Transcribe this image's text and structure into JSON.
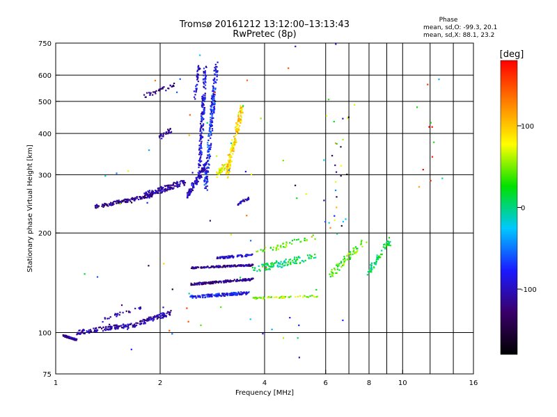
{
  "chart_data": {
    "type": "scatter",
    "title": "Tromsø 20161212 13:12:00–13:13:43",
    "subtitle": "RwPretec (8p)",
    "xlabel": "Frequency [MHz]",
    "ylabel": "Stationary phase Virtual Height [km]",
    "x_scale": "log",
    "y_scale": "log",
    "xlim": [
      1,
      16
    ],
    "ylim": [
      75,
      750
    ],
    "x_ticks": [
      1,
      2,
      4,
      6,
      8,
      10,
      16
    ],
    "x_tick_labels": [
      "1",
      "2",
      "4",
      "6",
      "8",
      "10",
      "16"
    ],
    "x_grid": [
      2,
      4,
      6,
      7,
      8,
      9,
      10,
      12,
      14
    ],
    "y_ticks": [
      75,
      100,
      200,
      300,
      400,
      500,
      600,
      750
    ],
    "y_tick_labels": [
      "75",
      "100",
      "200",
      "300",
      "400",
      "500",
      "600",
      "750"
    ],
    "y_grid": [
      100,
      200,
      300,
      400,
      500,
      600
    ],
    "grid": true,
    "stats": {
      "header": "Phase",
      "o_mode": "mean, sd,O: -99.3, 20.1",
      "x_mode": "mean, sd,X:  88.1, 23.2"
    },
    "colorbar": {
      "label": "[deg]",
      "ticks": [
        100,
        0,
        -100
      ],
      "tick_labels": [
        "100",
        "0",
        "-100"
      ],
      "range": [
        -180,
        180
      ],
      "colors": [
        "#000000",
        "#3a006a",
        "#1a1aff",
        "#00c8ff",
        "#00e000",
        "#ffff00",
        "#ff8000",
        "#ff0000"
      ]
    },
    "series": [
      {
        "x": [
          1.05,
          1.15
        ],
        "y": [
          98,
          95
        ],
        "phase": -110,
        "spread": 0.012,
        "n": 90,
        "seed": 11
      },
      {
        "x": [
          1.15,
          1.6
        ],
        "y": [
          100,
          105
        ],
        "phase": -110,
        "spread": 0.03,
        "n": 110,
        "seed": 12
      },
      {
        "x": [
          1.6,
          2.15
        ],
        "y": [
          104,
          115
        ],
        "phase": -110,
        "spread": 0.035,
        "n": 110,
        "seed": 13
      },
      {
        "x": [
          1.35,
          1.8
        ],
        "y": [
          110,
          120
        ],
        "phase": -105,
        "spread": 0.025,
        "n": 25,
        "seed": 14
      },
      {
        "x": [
          1.3,
          1.9
        ],
        "y": [
          240,
          260
        ],
        "phase": -120,
        "spread": 0.025,
        "n": 140,
        "seed": 21
      },
      {
        "x": [
          1.8,
          2.35
        ],
        "y": [
          260,
          285
        ],
        "phase": -110,
        "spread": 0.04,
        "n": 150,
        "seed": 22
      },
      {
        "x": [
          2.0,
          2.15
        ],
        "y": [
          390,
          410
        ],
        "phase": -110,
        "spread": 0.03,
        "n": 25,
        "seed": 23
      },
      {
        "x": [
          1.8,
          2.2
        ],
        "y": [
          520,
          560
        ],
        "phase": -120,
        "spread": 0.03,
        "n": 35,
        "seed": 24
      },
      {
        "x": [
          2.4,
          2.7
        ],
        "y": [
          260,
          320
        ],
        "phase": -100,
        "spread": 0.045,
        "n": 120,
        "seed": 31
      },
      {
        "x": [
          2.6,
          2.7
        ],
        "y": [
          320,
          640
        ],
        "phase": -90,
        "spread": 0.05,
        "n": 160,
        "seed": 32
      },
      {
        "x": [
          2.7,
          2.9
        ],
        "y": [
          270,
          640
        ],
        "phase": -75,
        "spread": 0.06,
        "n": 220,
        "seed": 33
      },
      {
        "x": [
          2.5,
          2.6
        ],
        "y": [
          500,
          650
        ],
        "phase": -95,
        "spread": 0.04,
        "n": 40,
        "seed": 34
      },
      {
        "x": [
          2.9,
          3.1
        ],
        "y": [
          300,
          320
        ],
        "phase": 80,
        "spread": 0.035,
        "n": 40,
        "seed": 41
      },
      {
        "x": [
          3.1,
          3.45
        ],
        "y": [
          300,
          480
        ],
        "phase": 95,
        "spread": 0.06,
        "n": 170,
        "seed": 42
      },
      {
        "x": [
          3.35,
          3.6
        ],
        "y": [
          245,
          255
        ],
        "phase": -100,
        "spread": 0.02,
        "n": 25,
        "seed": 43
      },
      {
        "x": [
          2.45,
          3.6
        ],
        "y": [
          128,
          132
        ],
        "phase": -80,
        "spread": 0.02,
        "n": 160,
        "seed": 51
      },
      {
        "x": [
          2.45,
          3.7
        ],
        "y": [
          140,
          145
        ],
        "phase": -120,
        "spread": 0.015,
        "n": 180,
        "seed": 52
      },
      {
        "x": [
          2.45,
          3.7
        ],
        "y": [
          157,
          160
        ],
        "phase": -115,
        "spread": 0.012,
        "n": 150,
        "seed": 53
      },
      {
        "x": [
          2.9,
          3.7
        ],
        "y": [
          168,
          172
        ],
        "phase": -95,
        "spread": 0.015,
        "n": 80,
        "seed": 54
      },
      {
        "x": [
          3.7,
          5.7
        ],
        "y": [
          127,
          129
        ],
        "phase": 60,
        "spread": 0.012,
        "n": 60,
        "seed": 61
      },
      {
        "x": [
          3.7,
          5.6
        ],
        "y": [
          155,
          170
        ],
        "phase": 10,
        "spread": 0.05,
        "n": 110,
        "seed": 62
      },
      {
        "x": [
          3.8,
          5.6
        ],
        "y": [
          175,
          195
        ],
        "phase": 40,
        "spread": 0.04,
        "n": 45,
        "seed": 63
      },
      {
        "x": [
          6.2,
          7.8
        ],
        "y": [
          150,
          190
        ],
        "phase": 40,
        "spread": 0.05,
        "n": 70,
        "seed": 71
      },
      {
        "x": [
          7.9,
          9.2
        ],
        "y": [
          150,
          190
        ],
        "phase": 10,
        "spread": 0.05,
        "n": 60,
        "seed": 72
      },
      {
        "x": [
          6.1,
          7.2
        ],
        "y": [
          200,
          500
        ],
        "phase": -20,
        "spread": 0.2,
        "n": 30,
        "seed": 73
      },
      {
        "x": [
          11.0,
          13.0
        ],
        "y": [
          260,
          640
        ],
        "phase": 100,
        "spread": 0.2,
        "n": 12,
        "seed": 74
      },
      {
        "x": [
          1.2,
          6.5
        ],
        "y": [
          85,
          720
        ],
        "phase": 0,
        "spread": 0.25,
        "n": 70,
        "seed": 81
      }
    ]
  }
}
